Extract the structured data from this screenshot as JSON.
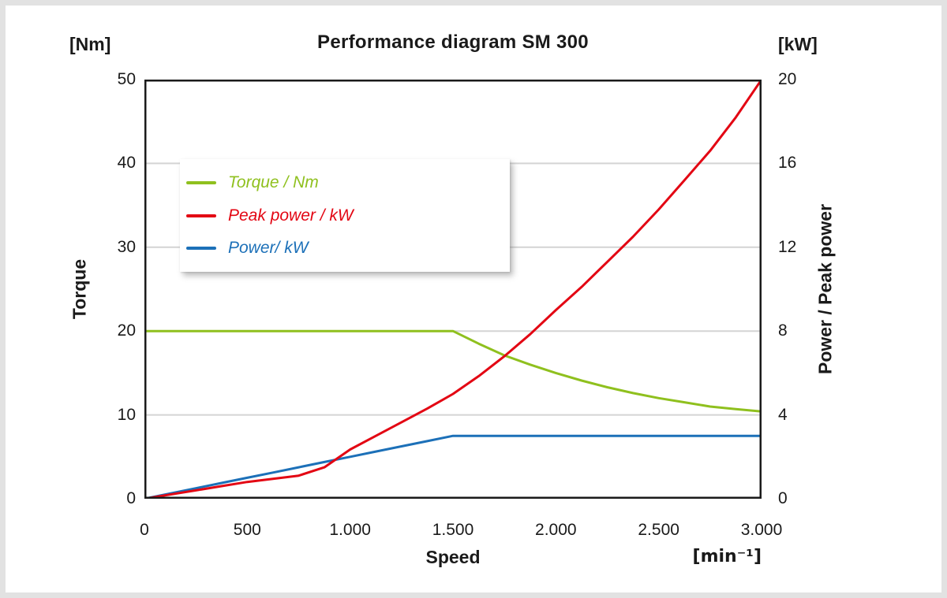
{
  "colors": {
    "outer_frame": "#e2e2e2",
    "axis_line": "#1a1a1a",
    "text": "#1a1a1a",
    "torque_green": "#8fc01e",
    "peak_power_red": "#e30613",
    "power_blue": "#1c70b8"
  },
  "chart_data": {
    "type": "line",
    "title": "Performance diagram SM 300",
    "x_axis": {
      "label": "Speed",
      "unit": "[min⁻¹]",
      "range": [
        0,
        3000
      ],
      "tick_values": [
        0,
        500,
        1000,
        1500,
        2000,
        2500,
        3000
      ],
      "tick_labels": [
        "0",
        "500",
        "1.000",
        "1.500",
        "2.000",
        "2.500",
        "3.000"
      ]
    },
    "left_axis": {
      "label": "Torque",
      "unit": "[Nm]",
      "range": [
        0,
        50
      ],
      "tick_values": [
        0,
        10,
        20,
        30,
        40,
        50
      ],
      "tick_labels": [
        "0",
        "10",
        "20",
        "30",
        "40",
        "50"
      ]
    },
    "right_axis": {
      "label": "Power / Peak power",
      "unit": "[kW]",
      "range": [
        0,
        20
      ],
      "tick_values": [
        0,
        4,
        8,
        12,
        16,
        20
      ],
      "tick_labels": [
        "0",
        "4",
        "8",
        "12",
        "16",
        "20"
      ]
    },
    "grid": {
      "horizontal_left_axis_values": [
        10,
        20,
        30,
        40
      ],
      "vertical": false,
      "color": "#d4d4d4"
    },
    "x": [
      0,
      125,
      250,
      375,
      500,
      625,
      750,
      875,
      1000,
      1125,
      1250,
      1375,
      1500,
      1625,
      1750,
      1875,
      2000,
      2125,
      2250,
      2375,
      2500,
      2625,
      2750,
      2875,
      3000
    ],
    "series": [
      {
        "name": "Torque / Nm",
        "axis": "left",
        "color": "#8fc01e",
        "values": [
          20,
          20,
          20,
          20,
          20,
          20,
          20,
          20,
          20,
          20,
          20,
          20,
          20,
          18.5,
          17.1,
          16.0,
          15.0,
          14.1,
          13.3,
          12.6,
          12.0,
          11.5,
          11.0,
          10.7,
          10.4
        ]
      },
      {
        "name": "Peak power / kW",
        "axis": "right",
        "color": "#e30613",
        "values": [
          0,
          0.2,
          0.4,
          0.6,
          0.8,
          0.95,
          1.1,
          1.5,
          2.35,
          3.0,
          3.65,
          4.3,
          5.0,
          5.85,
          6.8,
          7.85,
          9.0,
          10.1,
          11.3,
          12.5,
          13.8,
          15.2,
          16.6,
          18.2,
          20.0
        ]
      },
      {
        "name": "Power/ kW",
        "axis": "right",
        "color": "#1c70b8",
        "values": [
          0,
          0.25,
          0.5,
          0.75,
          1.0,
          1.25,
          1.5,
          1.75,
          2.0,
          2.25,
          2.5,
          2.75,
          3.0,
          3.0,
          3.0,
          3.0,
          3.0,
          3.0,
          3.0,
          3.0,
          3.0,
          3.0,
          3.0,
          3.0,
          3.0
        ]
      }
    ],
    "legend": {
      "position": "upper-left",
      "items": [
        {
          "label": "Torque / Nm",
          "color": "#8fc01e"
        },
        {
          "label": "Peak power / kW",
          "color": "#e30613"
        },
        {
          "label": "Power/ kW",
          "color": "#1c70b8"
        }
      ]
    }
  }
}
